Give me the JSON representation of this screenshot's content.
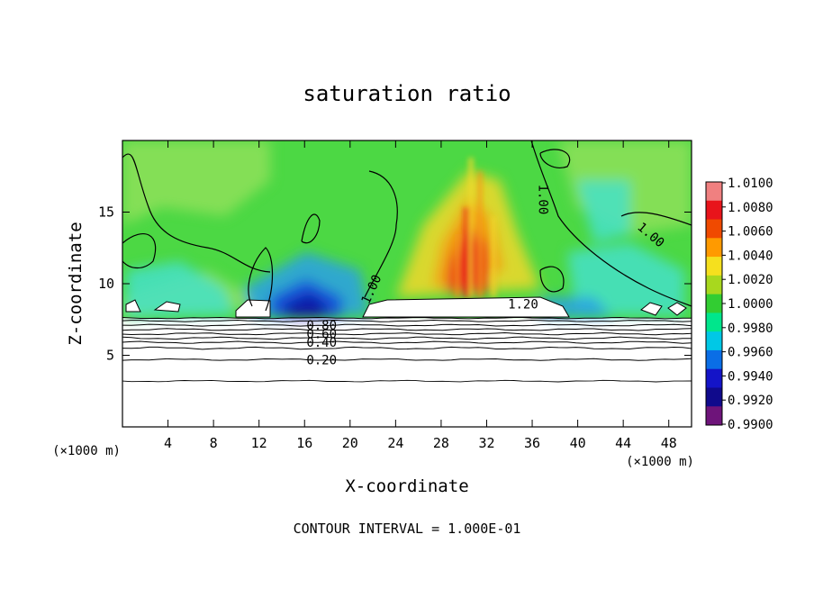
{
  "chart_data": {
    "type": "heatmap",
    "title": "saturation ratio",
    "xlabel": "X-coordinate",
    "ylabel": "Z-coordinate",
    "x_unit_left": "(×1000 m)",
    "x_unit_right": "(×1000 m)",
    "footer": "CONTOUR INTERVAL = 1.000E-01",
    "xlim": [
      0,
      50
    ],
    "ylim": [
      0,
      20
    ],
    "x_ticks": [
      "4",
      "8",
      "12",
      "16",
      "20",
      "24",
      "28",
      "32",
      "36",
      "40",
      "44",
      "48"
    ],
    "y_ticks": [
      "5",
      "10",
      "15"
    ],
    "contour_labels": [
      {
        "text": "0.20",
        "x": 17.5,
        "z": 4.7
      },
      {
        "text": "0.40",
        "x": 17.5,
        "z": 5.9
      },
      {
        "text": "0.60",
        "x": 17.5,
        "z": 6.5
      },
      {
        "text": "0.80",
        "x": 17.5,
        "z": 7.1
      },
      {
        "text": "1.20",
        "x": 35.2,
        "z": 8.6
      },
      {
        "text": "1.00",
        "x": 22.2,
        "z": 9.8
      },
      {
        "text": "1.00",
        "x": 36.6,
        "z": 16.2
      },
      {
        "text": "1.00",
        "x": 46.2,
        "z": 13.5
      }
    ],
    "colorbar": {
      "labels": [
        "1.0100",
        "1.0080",
        "1.0060",
        "1.0040",
        "1.0020",
        "1.0000",
        "0.9980",
        "0.9960",
        "0.9940",
        "0.9920",
        "0.9900"
      ],
      "colors": [
        "#f08080",
        "#e8141b",
        "#f04a00",
        "#ff9a00",
        "#f5e01e",
        "#a8d81e",
        "#32cd32",
        "#00e68c",
        "#00c8e6",
        "#0a6ee6",
        "#1414c8",
        "#100a8c",
        "#6e147a"
      ]
    },
    "field_colors": {
      "background": "#4cd844",
      "light_green": "#8ee05a",
      "cyan": "#46e0c8",
      "light_blue": "#28a0e6",
      "blue": "#1446dc",
      "deep_blue": "#0a0aa0",
      "yellow": "#f2d828",
      "orange": "#f59a14",
      "red": "#e8201c"
    }
  }
}
